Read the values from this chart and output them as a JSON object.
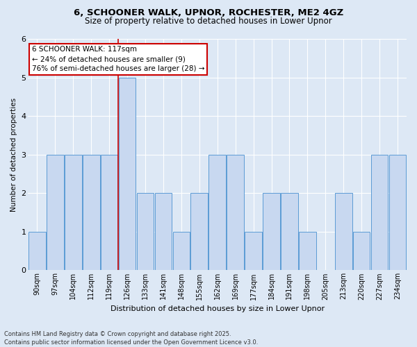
{
  "title_line1": "6, SCHOONER WALK, UPNOR, ROCHESTER, ME2 4GZ",
  "title_line2": "Size of property relative to detached houses in Lower Upnor",
  "xlabel": "Distribution of detached houses by size in Lower Upnor",
  "ylabel": "Number of detached properties",
  "categories": [
    "90sqm",
    "97sqm",
    "104sqm",
    "112sqm",
    "119sqm",
    "126sqm",
    "133sqm",
    "141sqm",
    "148sqm",
    "155sqm",
    "162sqm",
    "169sqm",
    "177sqm",
    "184sqm",
    "191sqm",
    "198sqm",
    "205sqm",
    "213sqm",
    "220sqm",
    "227sqm",
    "234sqm"
  ],
  "values": [
    1,
    3,
    3,
    3,
    3,
    5,
    2,
    2,
    1,
    2,
    3,
    3,
    1,
    2,
    2,
    1,
    0,
    2,
    1,
    3,
    3
  ],
  "bar_color": "#c8d8f0",
  "bar_edge_color": "#5b9bd5",
  "annotation_text": "6 SCHOONER WALK: 117sqm\n← 24% of detached houses are smaller (9)\n76% of semi-detached houses are larger (28) →",
  "annotation_box_color": "#ffffff",
  "annotation_box_edge_color": "#cc0000",
  "vline_color": "#cc0000",
  "vline_x": 4.5,
  "ylim": [
    0,
    6
  ],
  "yticks": [
    0,
    1,
    2,
    3,
    4,
    5,
    6
  ],
  "footer_line1": "Contains HM Land Registry data © Crown copyright and database right 2025.",
  "footer_line2": "Contains public sector information licensed under the Open Government Licence v3.0.",
  "bg_color": "#dde8f5",
  "plot_bg_color": "#dde8f5",
  "title_fontsize": 9.5,
  "subtitle_fontsize": 8.5
}
